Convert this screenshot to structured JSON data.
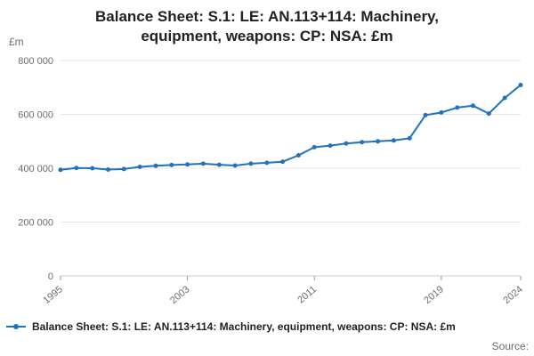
{
  "header": {
    "title": "Balance Sheet: S.1: LE: AN.113+114: Machinery, equipment, weapons: CP: NSA: £m"
  },
  "chart_data": {
    "type": "line",
    "title": "Balance Sheet: S.1: LE: AN.113+114: Machinery, equipment, weapons: CP: NSA: £m",
    "unit_label": "£m",
    "xlabel": "",
    "ylabel": "£m",
    "ylim": [
      0,
      800000
    ],
    "grid": true,
    "legend_position": "bottom",
    "x": [
      1995,
      1996,
      1997,
      1998,
      1999,
      2000,
      2001,
      2002,
      2003,
      2004,
      2005,
      2006,
      2007,
      2008,
      2009,
      2010,
      2011,
      2012,
      2013,
      2014,
      2015,
      2016,
      2017,
      2018,
      2019,
      2020,
      2021,
      2022,
      2023,
      2024
    ],
    "x_ticks": [
      1995,
      2003,
      2011,
      2019,
      2024
    ],
    "y_ticks": [
      {
        "value": 0,
        "label": "0"
      },
      {
        "value": 200000,
        "label": "200 000"
      },
      {
        "value": 400000,
        "label": "400 000"
      },
      {
        "value": 600000,
        "label": "600 000"
      },
      {
        "value": 800000,
        "label": "800 000"
      }
    ],
    "series": [
      {
        "name": "Balance Sheet: S.1: LE: AN.113+114: Machinery, equipment, weapons: CP: NSA: £m",
        "color": "#2073bc",
        "values": [
          394000,
          401000,
          400000,
          395000,
          397000,
          405000,
          409000,
          412000,
          414000,
          417000,
          413000,
          410000,
          417000,
          420000,
          424000,
          448000,
          478000,
          484000,
          492000,
          497000,
          500000,
          503000,
          511000,
          597000,
          607000,
          625000,
          632000,
          603000,
          661000,
          709000
        ]
      }
    ]
  },
  "legend": {
    "label": "Balance Sheet: S.1: LE: AN.113+114: Machinery, equipment, weapons: CP: NSA: £m"
  },
  "footer": {
    "source_label": "Source:"
  }
}
